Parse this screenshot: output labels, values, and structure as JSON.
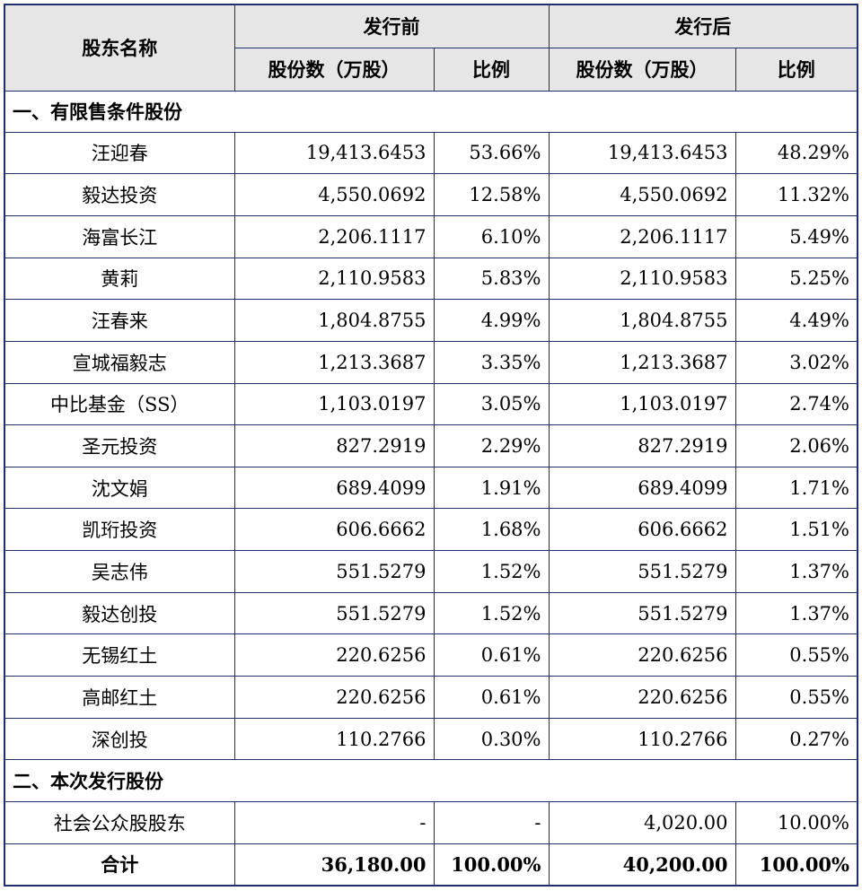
{
  "header": {
    "name": "股东名称",
    "before": "发行前",
    "after": "发行后",
    "shares": "股份数（万股）",
    "ratio": "比例"
  },
  "section1": "一、有限售条件股份",
  "section2": "二、本次发行股份",
  "rows1": [
    {
      "name": "汪迎春",
      "b_shares": "19,413.6453",
      "b_ratio": "53.66%",
      "a_shares": "19,413.6453",
      "a_ratio": "48.29%"
    },
    {
      "name": "毅达投资",
      "b_shares": "4,550.0692",
      "b_ratio": "12.58%",
      "a_shares": "4,550.0692",
      "a_ratio": "11.32%"
    },
    {
      "name": "海富长江",
      "b_shares": "2,206.1117",
      "b_ratio": "6.10%",
      "a_shares": "2,206.1117",
      "a_ratio": "5.49%"
    },
    {
      "name": "黄莉",
      "b_shares": "2,110.9583",
      "b_ratio": "5.83%",
      "a_shares": "2,110.9583",
      "a_ratio": "5.25%"
    },
    {
      "name": "汪春来",
      "b_shares": "1,804.8755",
      "b_ratio": "4.99%",
      "a_shares": "1,804.8755",
      "a_ratio": "4.49%"
    },
    {
      "name": "宣城福毅志",
      "b_shares": "1,213.3687",
      "b_ratio": "3.35%",
      "a_shares": "1,213.3687",
      "a_ratio": "3.02%"
    },
    {
      "name": "中比基金（SS）",
      "b_shares": "1,103.0197",
      "b_ratio": "3.05%",
      "a_shares": "1,103.0197",
      "a_ratio": "2.74%"
    },
    {
      "name": "圣元投资",
      "b_shares": "827.2919",
      "b_ratio": "2.29%",
      "a_shares": "827.2919",
      "a_ratio": "2.06%"
    },
    {
      "name": "沈文娟",
      "b_shares": "689.4099",
      "b_ratio": "1.91%",
      "a_shares": "689.4099",
      "a_ratio": "1.71%"
    },
    {
      "name": "凯珩投资",
      "b_shares": "606.6662",
      "b_ratio": "1.68%",
      "a_shares": "606.6662",
      "a_ratio": "1.51%"
    },
    {
      "name": "吴志伟",
      "b_shares": "551.5279",
      "b_ratio": "1.52%",
      "a_shares": "551.5279",
      "a_ratio": "1.37%"
    },
    {
      "name": "毅达创投",
      "b_shares": "551.5279",
      "b_ratio": "1.52%",
      "a_shares": "551.5279",
      "a_ratio": "1.37%"
    },
    {
      "name": "无锡红土",
      "b_shares": "220.6256",
      "b_ratio": "0.61%",
      "a_shares": "220.6256",
      "a_ratio": "0.55%"
    },
    {
      "name": "高邮红土",
      "b_shares": "220.6256",
      "b_ratio": "0.61%",
      "a_shares": "220.6256",
      "a_ratio": "0.55%"
    },
    {
      "name": "深创投",
      "b_shares": "110.2766",
      "b_ratio": "0.30%",
      "a_shares": "110.2766",
      "a_ratio": "0.27%"
    }
  ],
  "rows2": [
    {
      "name": "社会公众股股东",
      "b_shares": "-",
      "b_ratio": "-",
      "a_shares": "4,020.00",
      "a_ratio": "10.00%"
    }
  ],
  "total": {
    "name": "合计",
    "b_shares": "36,180.00",
    "b_ratio": "100.00%",
    "a_shares": "40,200.00",
    "a_ratio": "100.00%"
  }
}
